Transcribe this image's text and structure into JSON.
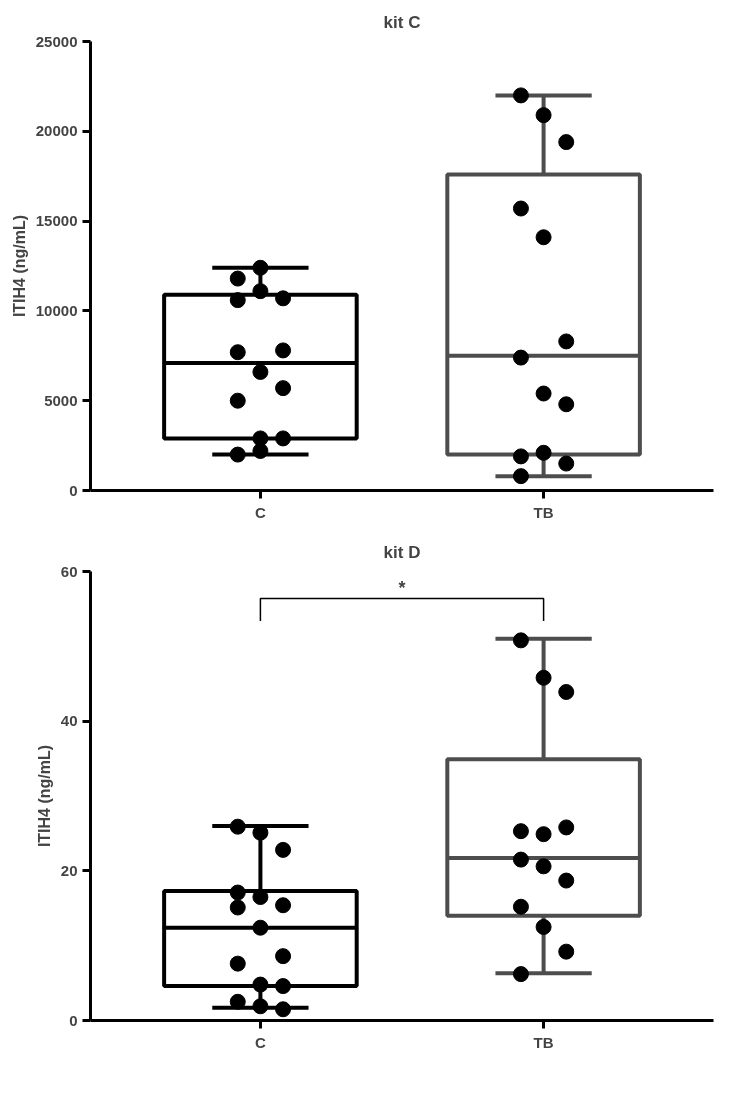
{
  "chart_data": [
    {
      "type": "box",
      "title": "kit C",
      "ylabel": "ITIH4 (ng/mL)",
      "categories": [
        "C",
        "TB"
      ],
      "colors": [
        "#000000",
        "#4d4d4d"
      ],
      "boxes": [
        {
          "low": 2000,
          "q1": 2900,
          "median": 7100,
          "q3": 10900,
          "high": 12400
        },
        {
          "low": 800,
          "q1": 2000,
          "median": 7500,
          "q3": 17600,
          "high": 22000
        }
      ],
      "series": [
        {
          "type": "scatter",
          "color": "#000000",
          "x": [
            "C",
            "C",
            "C",
            "C",
            "C",
            "C",
            "C",
            "C",
            "C",
            "C",
            "C",
            "C",
            "C",
            "C"
          ],
          "values": [
            11800,
            12400,
            10700,
            10600,
            11100,
            7800,
            7700,
            6600,
            5700,
            5000,
            2900,
            2900,
            2000,
            2200
          ]
        },
        {
          "type": "scatter",
          "color": "#000000",
          "x": [
            "TB",
            "TB",
            "TB",
            "TB",
            "TB",
            "TB",
            "TB",
            "TB",
            "TB",
            "TB",
            "TB",
            "TB",
            "TB"
          ],
          "values": [
            22000,
            20900,
            19400,
            15700,
            14100,
            8300,
            7400,
            5400,
            4800,
            1900,
            2100,
            1500,
            800
          ]
        }
      ],
      "ylim": [
        0,
        25000
      ],
      "yticks": [
        0,
        5000,
        10000,
        15000,
        20000,
        25000
      ],
      "marker": "circle"
    },
    {
      "type": "box",
      "title": "kit D",
      "ylabel": "ITIH4 (ng/mL)",
      "categories": [
        "C",
        "TB"
      ],
      "colors": [
        "#000000",
        "#4d4d4d"
      ],
      "boxes": [
        {
          "low": 1.7,
          "q1": 4.6,
          "median": 12.4,
          "q3": 17.3,
          "high": 26
        },
        {
          "low": 6.3,
          "q1": 14,
          "median": 21.7,
          "q3": 34.9,
          "high": 51
        }
      ],
      "series": [
        {
          "type": "scatter",
          "color": "#000000",
          "x": [
            "C",
            "C",
            "C",
            "C",
            "C",
            "C",
            "C",
            "C",
            "C",
            "C",
            "C",
            "C",
            "C",
            "C",
            "C"
          ],
          "values": [
            25.9,
            25.1,
            22.8,
            17.1,
            16.5,
            15.4,
            15.1,
            12.4,
            8.6,
            7.6,
            4.8,
            4.6,
            2.5,
            1.9,
            1.5
          ]
        },
        {
          "type": "scatter",
          "color": "#000000",
          "x": [
            "TB",
            "TB",
            "TB",
            "TB",
            "TB",
            "TB",
            "TB",
            "TB",
            "TB",
            "TB",
            "TB",
            "TB",
            "TB"
          ],
          "values": [
            50.8,
            45.8,
            43.9,
            25.3,
            24.9,
            25.8,
            21.5,
            20.6,
            18.7,
            15.2,
            12.5,
            9.2,
            6.2
          ]
        }
      ],
      "ylim": [
        0,
        60
      ],
      "yticks": [
        0,
        20,
        40,
        60
      ],
      "marker": "circle",
      "annotations": [
        "*"
      ]
    }
  ]
}
